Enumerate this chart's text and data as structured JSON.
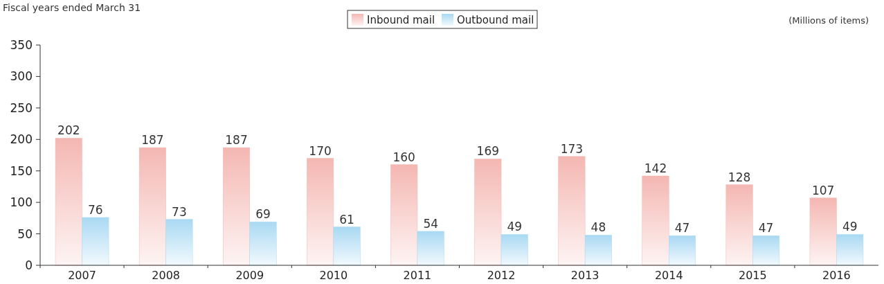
{
  "chart_data": {
    "type": "bar",
    "title": "Fiscal years ended March 31",
    "ylabel": "(Millions of items)",
    "categories": [
      "2007",
      "2008",
      "2009",
      "2010",
      "2011",
      "2012",
      "2013",
      "2014",
      "2015",
      "2016"
    ],
    "series": [
      {
        "name": "Inbound mail",
        "color": "#f4b7b2",
        "values": [
          202,
          187,
          187,
          170,
          160,
          169,
          173,
          142,
          128,
          107
        ]
      },
      {
        "name": "Outbound mail",
        "color": "#a9d9f3",
        "values": [
          76,
          73,
          69,
          61,
          54,
          49,
          48,
          47,
          47,
          49
        ]
      }
    ],
    "ylim": [
      0,
      350
    ],
    "yticks": [
      0,
      50,
      100,
      150,
      200,
      250,
      300,
      350
    ],
    "data_labels": true,
    "legend": "top",
    "grid": false
  }
}
